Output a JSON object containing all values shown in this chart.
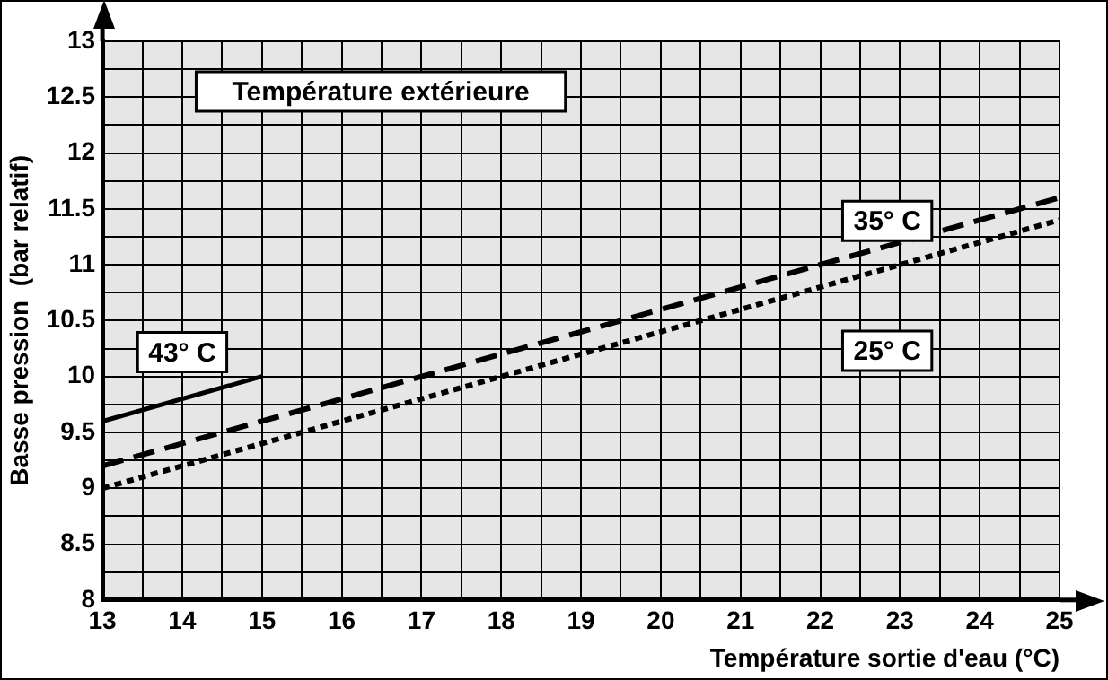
{
  "chart_data": {
    "type": "line",
    "xlabel": "Température sortie d'eau (°C)",
    "ylabel": "Basse pression  (bar relatif)",
    "legend_title": "Température extérieure",
    "legend": false,
    "grid": true,
    "marker": "none",
    "xlim": [
      13,
      25
    ],
    "ylim": [
      8,
      13
    ],
    "xticks": [
      13,
      {
        "value": 13.5,
        "label": null
      },
      14,
      {
        "value": 14.5,
        "label": null
      },
      15,
      {
        "value": 15.5,
        "label": null
      },
      16,
      {
        "value": 16.5,
        "label": null
      },
      17,
      {
        "value": 17.5,
        "label": null
      },
      18,
      {
        "value": 18.5,
        "label": null
      },
      19,
      {
        "value": 19.5,
        "label": null
      },
      20,
      {
        "value": 20.5,
        "label": null
      },
      21,
      {
        "value": 21.5,
        "label": null
      },
      22,
      {
        "value": 22.5,
        "label": null
      },
      23,
      {
        "value": 23.5,
        "label": null
      },
      24,
      {
        "value": 24.5,
        "label": null
      },
      25
    ],
    "yticks": [
      8,
      {
        "value": 8.25,
        "label": null
      },
      8.5,
      {
        "value": 8.75,
        "label": null
      },
      9,
      {
        "value": 9.25,
        "label": null
      },
      9.5,
      {
        "value": 9.75,
        "label": null
      },
      10,
      {
        "value": 10.25,
        "label": null
      },
      10.5,
      {
        "value": 10.75,
        "label": null
      },
      11,
      {
        "value": 11.25,
        "label": null
      },
      11.5,
      {
        "value": 11.75,
        "label": null
      },
      12,
      {
        "value": 12.25,
        "label": null
      },
      12.5,
      {
        "value": 12.75,
        "label": null
      },
      13
    ],
    "series": [
      {
        "name": "43° C",
        "color": "#000000",
        "line_style": "solid",
        "x": [
          13,
          15
        ],
        "values": [
          9.6,
          10.0
        ]
      },
      {
        "name": "35° C",
        "color": "#000000",
        "line_style": "dashed",
        "x": [
          13,
          25
        ],
        "values": [
          9.2,
          11.6
        ]
      },
      {
        "name": "25° C",
        "color": "#000000",
        "line_style": "dotted",
        "x": [
          13,
          25
        ],
        "values": [
          9.0,
          11.4
        ]
      }
    ]
  }
}
